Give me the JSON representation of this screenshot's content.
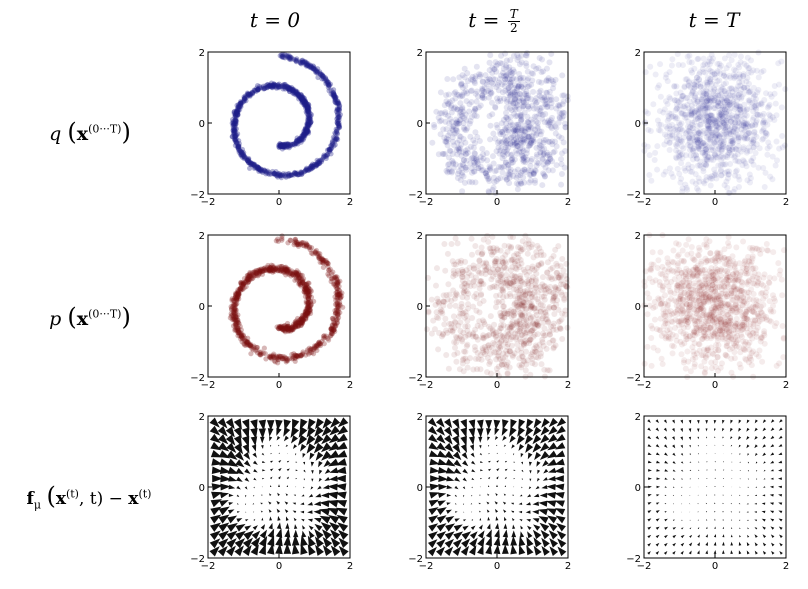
{
  "columns": [
    {
      "id": "t0",
      "prefix": "t = 0"
    },
    {
      "id": "thalf",
      "prefix": "t = ",
      "frac_num": "T",
      "frac_den": "2"
    },
    {
      "id": "tT",
      "prefix": "t = T"
    }
  ],
  "rows": [
    {
      "id": "q",
      "fn": "q",
      "arg": "x",
      "sup": "(0···T)"
    },
    {
      "id": "p",
      "fn": "p",
      "arg": "x",
      "sup": "(0···T)"
    },
    {
      "id": "f",
      "fn": "f",
      "sub": "μ",
      "arg": "x",
      "sup": "(t)",
      "tail": ", t) − ",
      "tail_x": "x",
      "tail_sup": "(t)"
    }
  ],
  "axis": {
    "xticks": [
      "−2",
      "0",
      "2"
    ],
    "yticks": [
      "2",
      "0",
      "−2"
    ],
    "range": [
      -2,
      2
    ]
  },
  "colors": {
    "q": "#1f1f8a",
    "p": "#7a1010",
    "quiver": "#111111"
  },
  "chart_data": {
    "type": "scatter",
    "xlim": [
      -2,
      2
    ],
    "ylim": [
      -2,
      2
    ],
    "panels": [
      {
        "row": "q",
        "col": "t = 0",
        "pattern": "swiss-roll spiral",
        "noise": 0.03
      },
      {
        "row": "q",
        "col": "t = T/2",
        "pattern": "noisy spiral",
        "noise": 0.35
      },
      {
        "row": "q",
        "col": "t = T",
        "pattern": "isotropic gaussian",
        "noise": 1.0
      },
      {
        "row": "p",
        "col": "t = 0",
        "pattern": "swiss-roll spiral",
        "noise": 0.05
      },
      {
        "row": "p",
        "col": "t = T/2",
        "pattern": "noisy spiral",
        "noise": 0.4
      },
      {
        "row": "p",
        "col": "t = T",
        "pattern": "isotropic gaussian",
        "noise": 1.0
      },
      {
        "row": "f",
        "col": "t = 0",
        "pattern": "drift field",
        "magnitude": 1.0
      },
      {
        "row": "f",
        "col": "t = T/2",
        "pattern": "drift field",
        "magnitude": 0.9
      },
      {
        "row": "f",
        "col": "t = T",
        "pattern": "drift field",
        "magnitude": 0.35
      }
    ]
  }
}
